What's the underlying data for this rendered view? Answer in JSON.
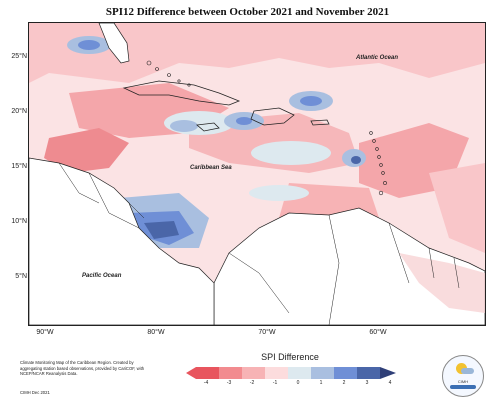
{
  "title": "SPI12 Difference between October 2021 and November 2021",
  "lat_labels": [
    "25°N",
    "20°N",
    "15°N",
    "10°N",
    "5°N"
  ],
  "lon_labels": [
    "90°W",
    "80°W",
    "70°W",
    "60°W"
  ],
  "ocean_labels": {
    "atlantic": "Atlantic Ocean",
    "caribbean": "Caribbean Sea",
    "pacific": "Pacific Ocean"
  },
  "footer": {
    "note": "Climate Monitoring Map of the Caribbean Region. Created by aggregating station based observations, provided by CariCOF, with NCEP/NCAR Reanalysis Data.",
    "date": "CIMH Dec 2021"
  },
  "legend": {
    "title": "SPI Difference",
    "ticks": [
      "-4",
      "-3",
      "-2",
      "-1",
      "0",
      "1",
      "2",
      "3",
      "4"
    ],
    "colors": [
      "#e8555e",
      "#f28b8f",
      "#f7b3b5",
      "#fcdcdd",
      "#dde9ef",
      "#a9bfe0",
      "#6f8fd6",
      "#4a66a8",
      "#2f3f78"
    ]
  },
  "logo": {
    "text": "CIMH"
  }
}
